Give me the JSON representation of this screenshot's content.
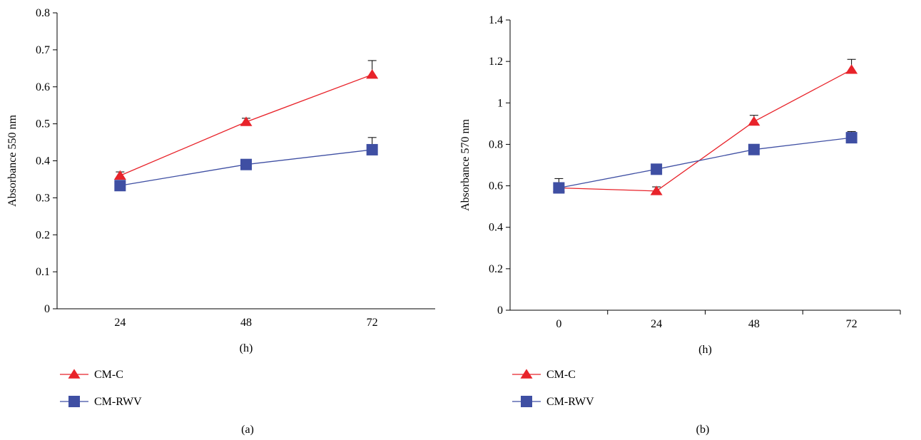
{
  "chart_data": [
    {
      "type": "line",
      "panel_label": "(a)",
      "categories": [
        "24",
        "48",
        "72"
      ],
      "xlabel": "(h)",
      "ylabel": "Absorbance 550 nm",
      "ylim": [
        0,
        0.8
      ],
      "yticks": [
        "0",
        "0.1",
        "0.2",
        "0.3",
        "0.4",
        "0.5",
        "0.6",
        "0.7",
        "0.8"
      ],
      "grid": false,
      "legend_position": "bottom-left",
      "series": [
        {
          "name": "CM-C",
          "values": [
            0.36,
            0.505,
            0.633
          ],
          "errors": [
            0.01,
            0.01,
            0.038
          ],
          "color": "#e8232a",
          "marker": "triangle"
        },
        {
          "name": "CM-RWV",
          "values": [
            0.333,
            0.39,
            0.43
          ],
          "errors": [
            0.0,
            0.0,
            0.033
          ],
          "color": "#3f4fa3",
          "marker": "square"
        }
      ]
    },
    {
      "type": "line",
      "panel_label": "(b)",
      "categories": [
        "0",
        "24",
        "48",
        "72"
      ],
      "xlabel": "(h)",
      "ylabel": "Absorbance 570 nm",
      "ylim": [
        0,
        1.4
      ],
      "yticks": [
        "0",
        "0.2",
        "0.4",
        "0.6",
        "0.8",
        "1",
        "1.2",
        "1.4"
      ],
      "grid": false,
      "legend_position": "bottom-left",
      "series": [
        {
          "name": "CM-C",
          "values": [
            0.59,
            0.575,
            0.91,
            1.16
          ],
          "errors": [
            0.0,
            0.02,
            0.03,
            0.05
          ],
          "color": "#e8232a",
          "marker": "triangle"
        },
        {
          "name": "CM-RWV",
          "values": [
            0.59,
            0.68,
            0.775,
            0.832
          ],
          "errors": [
            0.045,
            0.0,
            0.0,
            0.03
          ],
          "color": "#3f4fa3",
          "marker": "square"
        }
      ]
    }
  ]
}
